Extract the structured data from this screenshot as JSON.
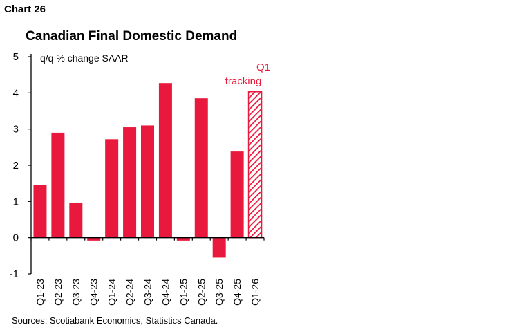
{
  "header": {
    "chart_number": "Chart 26"
  },
  "footer": {
    "source": "Sources: Scotiabank Economics, Statistics Canada."
  },
  "colors": {
    "bar": "#e8193c",
    "tracking_stripe": "#e8193c",
    "annotation": "#e8193c",
    "axis": "#000000"
  },
  "chart_data": {
    "type": "bar",
    "title": "Canadian Final Domestic Demand",
    "ylabel": "q/q % change SAAR",
    "xlabel": "",
    "categories": [
      "Q1-23",
      "Q2-23",
      "Q3-23",
      "Q4-23",
      "Q1-24",
      "Q2-24",
      "Q3-24",
      "Q4-24",
      "Q1-25",
      "Q2-25",
      "Q3-25",
      "Q4-25",
      "Q1-26"
    ],
    "values": [
      1.45,
      2.9,
      0.95,
      -0.08,
      2.72,
      3.05,
      3.1,
      4.27,
      -0.08,
      3.85,
      -0.55,
      2.38,
      4.03
    ],
    "ylim": [
      -1,
      5
    ],
    "yticks": [
      -1,
      0,
      1,
      2,
      3,
      4,
      5
    ],
    "grid": false,
    "legend": "none",
    "hatched_categories": [
      "Q1-26"
    ],
    "annotation": {
      "lines": [
        "Q1",
        "tracking"
      ],
      "category": "Q1-26"
    }
  }
}
